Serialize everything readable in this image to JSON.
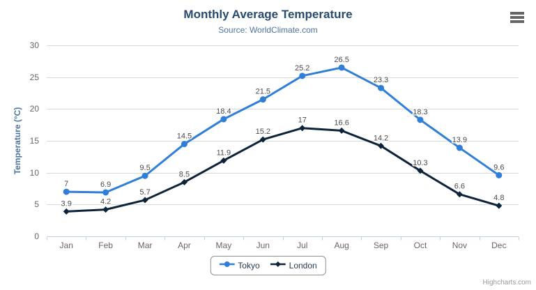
{
  "chart_data": {
    "type": "line",
    "title": "Monthly Average Temperature",
    "subtitle": "Source: WorldClimate.com",
    "categories": [
      "Jan",
      "Feb",
      "Mar",
      "Apr",
      "May",
      "Jun",
      "Jul",
      "Aug",
      "Sep",
      "Oct",
      "Nov",
      "Dec"
    ],
    "series": [
      {
        "name": "Tokyo",
        "color": "#2f7ed8",
        "marker": "circle",
        "values": [
          7,
          6.9,
          9.5,
          14.5,
          18.4,
          21.5,
          25.2,
          26.5,
          23.3,
          18.3,
          13.9,
          9.6
        ]
      },
      {
        "name": "London",
        "color": "#0d233a",
        "marker": "diamond",
        "values": [
          3.9,
          4.2,
          5.7,
          8.5,
          11.9,
          15.2,
          17,
          16.6,
          14.2,
          10.3,
          6.6,
          4.8
        ]
      }
    ],
    "xlabel": "",
    "ylabel": "Temperature (°C)",
    "ylim": [
      0,
      30
    ],
    "yticks": [
      0,
      5,
      10,
      15,
      20,
      25,
      30
    ],
    "grid": true,
    "data_labels": true,
    "legend_position": "bottom-center"
  },
  "legend": {
    "items": [
      "Tokyo",
      "London"
    ]
  },
  "context_menu": {
    "icon": "hamburger-icon"
  },
  "credits": {
    "label": "Highcharts.com"
  },
  "colors": {
    "title": "#274b6d",
    "subtitle": "#4d759e",
    "axis_title": "#4d759e",
    "axis_label": "#666666",
    "grid_line": "#d8d8d8",
    "axis_line": "#c0d0e0",
    "data_label": "#4a4a4a",
    "legend_text": "#263a52",
    "menu_icon": "#666666",
    "credits": "#999999"
  }
}
